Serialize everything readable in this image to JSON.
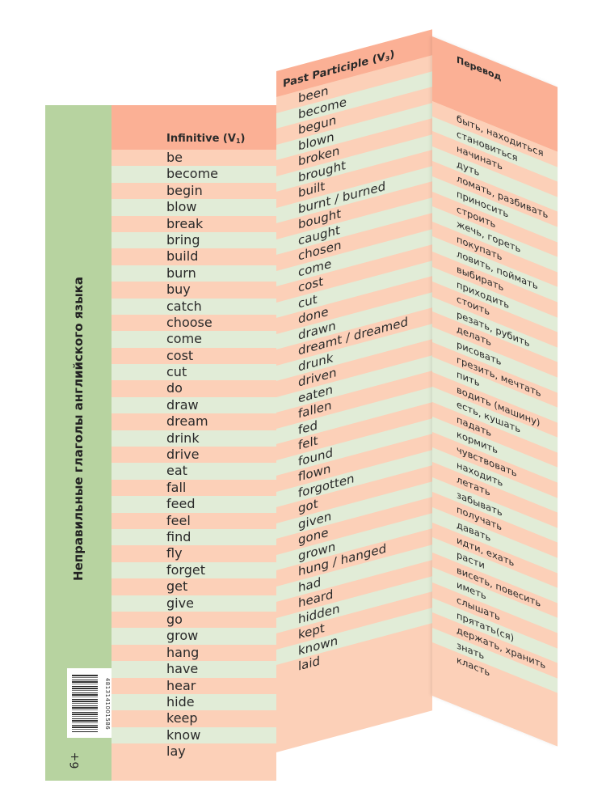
{
  "title": "Неправильные глаголы английского языка",
  "barcode_number": "4813141001586",
  "age_rating": "6+",
  "columns": {
    "infinitive": {
      "label": "Infinitive (V",
      "sub": "1",
      "close": ")"
    },
    "past_participle": {
      "label": "Past Participle (V",
      "sub": "3",
      "close": ")"
    },
    "translation": {
      "label": "Перевод"
    }
  },
  "infinitives": [
    "be",
    "become",
    "begin",
    "blow",
    "break",
    "bring",
    "build",
    "burn",
    "buy",
    "catch",
    "choose",
    "come",
    "cost",
    "cut",
    "do",
    "draw",
    "dream",
    "drink",
    "drive",
    "eat",
    "fall",
    "feed",
    "feel",
    "find",
    "fly",
    "forget",
    "get",
    "give",
    "go",
    "grow",
    "hang",
    "have",
    "hear",
    "hide",
    "keep",
    "know",
    "lay"
  ],
  "past_participles": [
    "been",
    "become",
    "begun",
    "blown",
    "broken",
    "brought",
    "built",
    "burnt / burned",
    "bought",
    "caught",
    "chosen",
    "come",
    "cost",
    "cut",
    "done",
    "drawn",
    "dreamt / dreamed",
    "drunk",
    "driven",
    "eaten",
    "fallen",
    "fed",
    "felt",
    "found",
    "flown",
    "forgotten",
    "got",
    "given",
    "gone",
    "grown",
    "hung / hanged",
    "had",
    "heard",
    "hidden",
    "kept",
    "known",
    "laid"
  ],
  "translations": [
    "быть, находиться",
    "становиться",
    "начинать",
    "дуть",
    "ломать, разбивать",
    "приносить",
    "строить",
    "жечь, гореть",
    "покупать",
    "ловить, поймать",
    "выбирать",
    "приходить",
    "стоить",
    "резать, рубить",
    "делать",
    "рисовать",
    "грезить, мечтать",
    "пить",
    "водить (машину)",
    "есть, кушать",
    "падать",
    "кормить",
    "чувствовать",
    "находить",
    "летать",
    "забывать",
    "получать",
    "давать",
    "идти, ехать",
    "расти",
    "висеть, повесить",
    "иметь",
    "слышать",
    "прятать(ся)",
    "держать, хранить",
    "знать",
    "класть"
  ],
  "colors": {
    "green": "#b7d3a0",
    "salmon": "#fcd0b8",
    "header": "#fbb095",
    "mint": "#e1ecd7"
  }
}
